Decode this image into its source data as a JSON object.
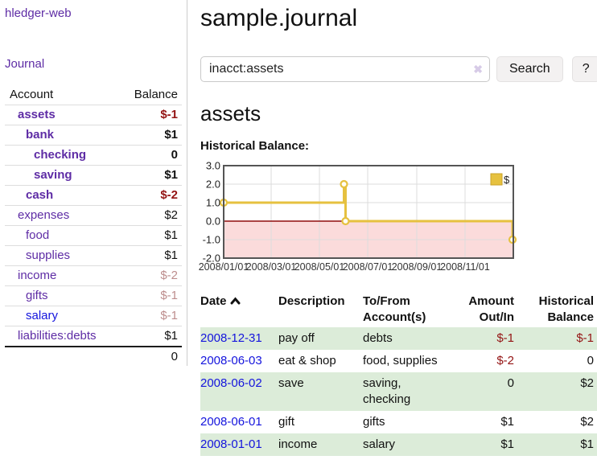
{
  "app": {
    "title": "hledger-web"
  },
  "sidebar": {
    "journal_link": "Journal",
    "accounts_header": {
      "account": "Account",
      "balance": "Balance"
    },
    "accounts": [
      {
        "name": "assets",
        "balance": "$-1",
        "level": 1,
        "bold": true,
        "balance_style": "neg",
        "link_style": "purple"
      },
      {
        "name": "bank",
        "balance": "$1",
        "level": 2,
        "bold": true,
        "balance_style": "normal",
        "link_style": "purple"
      },
      {
        "name": "checking",
        "balance": "0",
        "level": 3,
        "bold": true,
        "balance_style": "normal",
        "link_style": "purple"
      },
      {
        "name": "saving",
        "balance": "$1",
        "level": 3,
        "bold": true,
        "balance_style": "normal",
        "link_style": "purple"
      },
      {
        "name": "cash",
        "balance": "$-2",
        "level": 2,
        "bold": true,
        "balance_style": "neg",
        "link_style": "purple"
      },
      {
        "name": "expenses",
        "balance": "$2",
        "level": 1,
        "bold": false,
        "balance_style": "normal",
        "link_style": "purple"
      },
      {
        "name": "food",
        "balance": "$1",
        "level": 2,
        "bold": false,
        "balance_style": "normal",
        "link_style": "purple"
      },
      {
        "name": "supplies",
        "balance": "$1",
        "level": 2,
        "bold": false,
        "balance_style": "normal",
        "link_style": "purple"
      },
      {
        "name": "income",
        "balance": "$-2",
        "level": 1,
        "bold": false,
        "balance_style": "negfaint",
        "link_style": "purple"
      },
      {
        "name": "gifts",
        "balance": "$-1",
        "level": 2,
        "bold": false,
        "balance_style": "negfaint",
        "link_style": "purple"
      },
      {
        "name": "salary",
        "balance": "$-1",
        "level": 2,
        "bold": false,
        "balance_style": "negfaint",
        "link_style": "blue"
      },
      {
        "name": "liabilities:debts",
        "balance": "$1",
        "level": 1,
        "bold": false,
        "balance_style": "normal",
        "link_style": "purple"
      }
    ],
    "total": "0"
  },
  "header": {
    "title": "sample.journal"
  },
  "search": {
    "value": "inacct:assets",
    "clear_icon": "✖",
    "button_label": "Search",
    "help_label": "?"
  },
  "account_page": {
    "title": "assets",
    "chart_label": "Historical Balance:"
  },
  "chart_data": {
    "type": "line",
    "step": true,
    "title": "Historical Balance",
    "series": [
      {
        "name": "$",
        "points": [
          {
            "date": "2008-01-01",
            "value": 1
          },
          {
            "date": "2008-06-01",
            "value": 2
          },
          {
            "date": "2008-06-03",
            "value": 0
          },
          {
            "date": "2008-12-31",
            "value": -1
          }
        ]
      }
    ],
    "ylim": [
      -2,
      3
    ],
    "y_ticks": [
      3.0,
      2.0,
      1.0,
      0.0,
      -1.0,
      -2.0
    ],
    "x_tick_labels": [
      "2008/01/01",
      "2008/03/01",
      "2008/05/01",
      "2008/07/01",
      "2008/09/01",
      "2008/11/01"
    ],
    "legend": {
      "label": "$",
      "position": "top-right"
    },
    "negative_region_shaded": true,
    "grid": true
  },
  "register": {
    "columns": [
      "Date",
      "Description",
      "To/From Account(s)",
      "Amount Out/In",
      "Historical Balance"
    ],
    "sort_column": "Date",
    "rows": [
      {
        "date": "2008-12-31",
        "description": "pay off",
        "accounts": "debts",
        "amount": "$-1",
        "amount_neg": true,
        "balance": "$-1",
        "balance_neg": true,
        "shaded": true
      },
      {
        "date": "2008-06-03",
        "description": "eat & shop",
        "accounts": "food, supplies",
        "amount": "$-2",
        "amount_neg": true,
        "balance": "0",
        "balance_neg": false,
        "shaded": false
      },
      {
        "date": "2008-06-02",
        "description": "save",
        "accounts": "saving, checking",
        "amount": "0",
        "amount_neg": false,
        "balance": "$2",
        "balance_neg": false,
        "shaded": true
      },
      {
        "date": "2008-06-01",
        "description": "gift",
        "accounts": "gifts",
        "amount": "$1",
        "amount_neg": false,
        "balance": "$2",
        "balance_neg": false,
        "shaded": false
      },
      {
        "date": "2008-01-01",
        "description": "income",
        "accounts": "salary",
        "amount": "$1",
        "amount_neg": false,
        "balance": "$1",
        "balance_neg": false,
        "shaded": true
      }
    ]
  },
  "colors": {
    "link_purple": "#5e2ca5",
    "link_blue": "#1414dd",
    "negative_strong": "#941414",
    "negative_faint": "#bd8d8d",
    "row_green": "#dcecd9",
    "chart_line_gold": "#e6c13f",
    "chart_gold_dark": "#c9a227",
    "chart_negative_pink": "#fbdbdb",
    "chart_zero_line": "#8f0d0d",
    "chart_frame": "#555555",
    "chart_grid": "#dcdcdc"
  }
}
